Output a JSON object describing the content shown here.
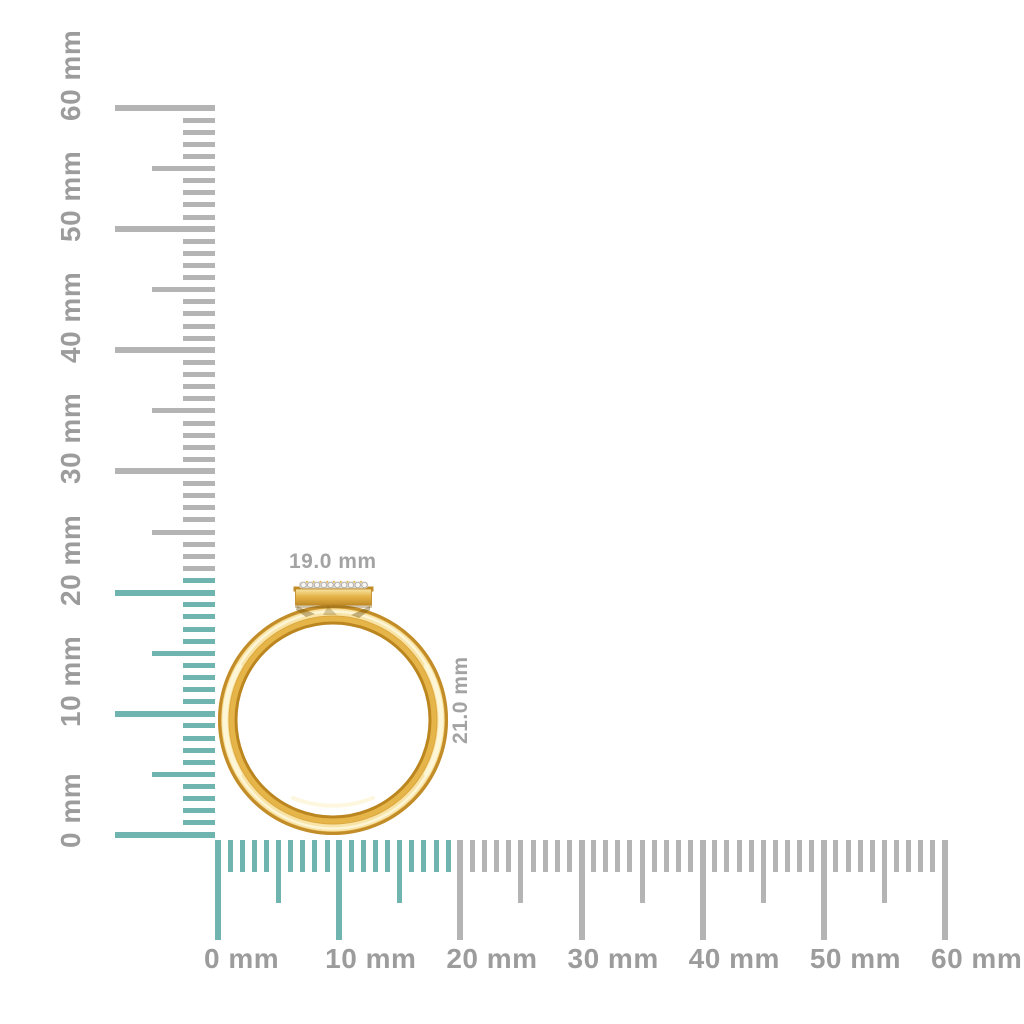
{
  "page": {
    "description_unit": "mm"
  },
  "vertical_ruler": {
    "unit": "mm",
    "max_mm": 60,
    "label_every_mm": 10,
    "half_tick_every_mm": 5,
    "highlight_up_to_mm": 21,
    "labels": [
      "0 mm",
      "10 mm",
      "20 mm",
      "30 mm",
      "40 mm",
      "50 mm",
      "60 mm"
    ]
  },
  "horizontal_ruler": {
    "unit": "mm",
    "max_mm": 60,
    "label_every_mm": 10,
    "half_tick_every_mm": 5,
    "highlight_up_to_mm": 19,
    "labels": [
      "0 mm",
      "10 mm",
      "20 mm",
      "30 mm",
      "40 mm",
      "50 mm",
      "60 mm"
    ]
  },
  "ring": {
    "width_label": "19.0 mm",
    "height_label": "21.0 mm",
    "diamond_count": 10
  },
  "colors": {
    "background": "#ffffff",
    "highlight_teal": "#6fb4af",
    "tick_gray": "#b4b4b4",
    "label_gray": "#9c9c9c",
    "dim_label_gray": "#a3a3a3",
    "gold_base": "#dda73e",
    "gold_dark": "#c28c28",
    "gold_deep": "#bb861f",
    "gold_mid": "#e6b54a",
    "gold_light": "#f7e4a6",
    "gold_bright": "#fdf5d7",
    "gold_shadow": "#7a5a10",
    "diamond_white": "#f7f6f3",
    "diamond_edge": "#9f9f9f",
    "diamond_strip": "#ddd8cf"
  }
}
